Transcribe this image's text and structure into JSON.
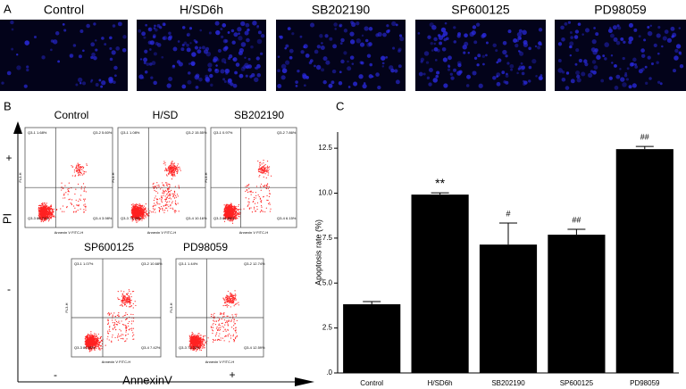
{
  "panel_labels": [
    "A",
    "B",
    "C"
  ],
  "panel_a": {
    "titles": [
      "Control",
      "H/SD6h",
      "SB202190",
      "SP600125",
      "PD98059"
    ]
  },
  "panel_b": {
    "plots": [
      {
        "title": "Control",
        "quadrants": [
          "Q3-1 1.68%",
          "Q3-2 5.60%",
          "Q3-3 88.74%",
          "Q3-4 3.98%"
        ]
      },
      {
        "title": "H/SD",
        "quadrants": [
          "Q3-1 1.08%",
          "Q3-2 15.55%",
          "Q3-3 73.23%",
          "Q3-4 10.16%"
        ]
      },
      {
        "title": "SB202190",
        "quadrants": [
          "Q3-1 0.97%",
          "Q3-2 7.86%",
          "Q3-3 84.85%",
          "Q3-4 6.15%"
        ]
      },
      {
        "title": "SP600125",
        "quadrants": [
          "Q3-1 1.07%",
          "Q3-2 10.68%",
          "Q3-3 80.65%",
          "Q3-4 7.42%"
        ]
      },
      {
        "title": "PD98059",
        "quadrants": [
          "Q3-1 1.44%",
          "Q3-2 12.74%",
          "Q3-3 73.22%",
          "Q3-4 12.59%"
        ]
      }
    ],
    "plot_x_label": "Annexin V FITC-H",
    "plot_y_label": "FL3-H",
    "y_axis": "PI",
    "x_axis": "AnnexinV",
    "y_plus": "+",
    "y_minus": "-",
    "x_minus": "-",
    "x_plus": "+"
  },
  "chart_data": {
    "type": "bar",
    "y_label": "Apoptosis rate (%)",
    "categories": [
      "Control",
      "H/SD6h",
      "SB202190",
      "SP600125",
      "PD98059"
    ],
    "values": [
      3.82,
      9.92,
      7.14,
      7.69,
      12.45
    ],
    "errors": [
      0.15,
      0.1,
      1.2,
      0.3,
      0.15
    ],
    "annotations": [
      null,
      "**",
      "#",
      "##",
      "##"
    ],
    "color": "#000000",
    "ylim": [
      0,
      13.4
    ],
    "yticks": [
      {
        "value": 0,
        "label": ".0"
      },
      2.5,
      {
        "value": 5,
        "label": "5.0"
      },
      7.5,
      {
        "value": 10,
        "label": "10.0"
      },
      12.5
    ]
  }
}
